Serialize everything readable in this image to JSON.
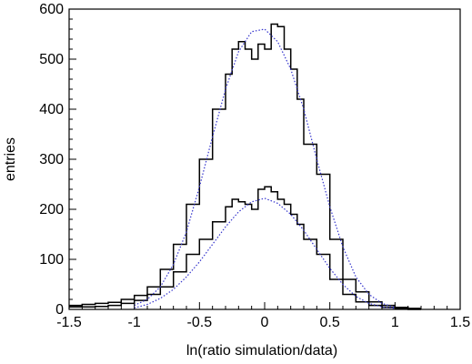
{
  "chart_data": {
    "type": "line",
    "title": "",
    "xlabel": "ln(ratio simulation/data)",
    "ylabel": "entries",
    "xlim": [
      -1.5,
      1.5
    ],
    "ylim": [
      0,
      600
    ],
    "x_ticks": [
      "-1.5",
      "-1",
      "-0.5",
      "0",
      "0.5",
      "1",
      "1.5"
    ],
    "y_ticks": [
      "0",
      "100",
      "200",
      "300",
      "400",
      "500",
      "600"
    ],
    "grid": false,
    "legend": "none",
    "colors": {
      "histogram": "#000000",
      "fit": "#3333cc"
    },
    "series": [
      {
        "style": "histogram",
        "x": [
          -1.5,
          -1.4,
          -1.3,
          -1.2,
          -1.1,
          -1.0,
          -0.9,
          -0.8,
          -0.7,
          -0.6,
          -0.5,
          -0.4,
          -0.3,
          -0.25,
          -0.2,
          -0.15,
          -0.1,
          -0.05,
          0.0,
          0.05,
          0.1,
          0.15,
          0.2,
          0.25,
          0.3,
          0.4,
          0.5,
          0.6,
          0.7,
          0.8,
          0.9,
          1.0,
          1.1
        ],
        "y": [
          8,
          10,
          12,
          14,
          20,
          28,
          45,
          80,
          130,
          210,
          300,
          400,
          470,
          520,
          535,
          520,
          500,
          530,
          520,
          570,
          565,
          520,
          480,
          420,
          330,
          270,
          140,
          60,
          35,
          15,
          8,
          4,
          2
        ]
      },
      {
        "style": "histogram",
        "x": [
          -1.5,
          -1.4,
          -1.3,
          -1.2,
          -1.1,
          -1.0,
          -0.9,
          -0.8,
          -0.7,
          -0.6,
          -0.5,
          -0.4,
          -0.3,
          -0.25,
          -0.2,
          -0.15,
          -0.1,
          -0.05,
          0.0,
          0.05,
          0.1,
          0.15,
          0.2,
          0.25,
          0.3,
          0.4,
          0.5,
          0.6,
          0.7,
          0.8,
          0.9,
          1.0,
          1.1
        ],
        "y": [
          5,
          5,
          6,
          8,
          12,
          18,
          30,
          45,
          75,
          110,
          140,
          175,
          205,
          220,
          215,
          210,
          200,
          240,
          245,
          235,
          220,
          210,
          190,
          170,
          140,
          110,
          60,
          30,
          15,
          8,
          4,
          2,
          0
        ]
      },
      {
        "style": "dotted-fit",
        "x": [
          -1.0,
          -0.9,
          -0.8,
          -0.7,
          -0.6,
          -0.5,
          -0.4,
          -0.3,
          -0.2,
          -0.1,
          0.0,
          0.1,
          0.2,
          0.3,
          0.4,
          0.5,
          0.6,
          0.7,
          0.8,
          0.9,
          1.0
        ],
        "y": [
          8,
          20,
          45,
          90,
          155,
          245,
          345,
          440,
          515,
          555,
          560,
          535,
          480,
          400,
          300,
          205,
          125,
          65,
          30,
          12,
          4
        ]
      },
      {
        "style": "dotted-fit",
        "x": [
          -1.0,
          -0.9,
          -0.8,
          -0.7,
          -0.6,
          -0.5,
          -0.4,
          -0.3,
          -0.2,
          -0.1,
          0.0,
          0.1,
          0.2,
          0.3,
          0.4,
          0.5,
          0.6,
          0.7,
          0.8,
          0.9,
          1.0
        ],
        "y": [
          3,
          10,
          22,
          40,
          65,
          95,
          130,
          165,
          195,
          215,
          222,
          212,
          190,
          158,
          120,
          82,
          50,
          26,
          12,
          5,
          2
        ]
      }
    ]
  }
}
